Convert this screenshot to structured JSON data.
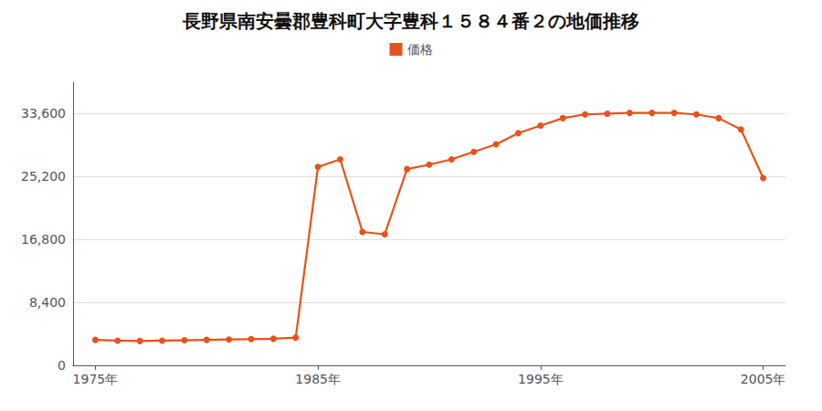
{
  "chart_data": {
    "type": "line",
    "title": "長野県南安曇郡豊科町大字豊科１５８４番２の地価推移",
    "x": [
      1975,
      1976,
      1977,
      1978,
      1979,
      1980,
      1981,
      1982,
      1983,
      1984,
      1985,
      1986,
      1987,
      1988,
      1989,
      1990,
      1991,
      1992,
      1993,
      1994,
      1995,
      1996,
      1997,
      1998,
      1999,
      2000,
      2001,
      2002,
      2003,
      2004,
      2005
    ],
    "series": [
      {
        "name": "価格",
        "color": "#E8521A",
        "marker": "circle",
        "values": [
          3400,
          3300,
          3250,
          3300,
          3350,
          3400,
          3450,
          3500,
          3550,
          3700,
          26500,
          27500,
          17800,
          17500,
          26200,
          26800,
          27500,
          28500,
          29500,
          31000,
          32000,
          33000,
          33500,
          33600,
          33700,
          33700,
          33700,
          33500,
          33000,
          31500,
          25000
        ]
      }
    ],
    "xlim": [
      1974,
      2006
    ],
    "xticks": [
      {
        "value": 1975,
        "label": "1975年"
      },
      {
        "value": 1985,
        "label": "1985年"
      },
      {
        "value": 1995,
        "label": "1995年"
      },
      {
        "value": 2005,
        "label": "2005年"
      }
    ],
    "ylim": [
      0,
      37800
    ],
    "yticks": [
      0,
      {
        "value": 8400,
        "label": "8,400"
      },
      {
        "value": 16800,
        "label": "16,800"
      },
      {
        "value": 25200,
        "label": "25,200"
      },
      {
        "value": 33600,
        "label": "33,600"
      }
    ],
    "grid": true,
    "legend": "top"
  }
}
